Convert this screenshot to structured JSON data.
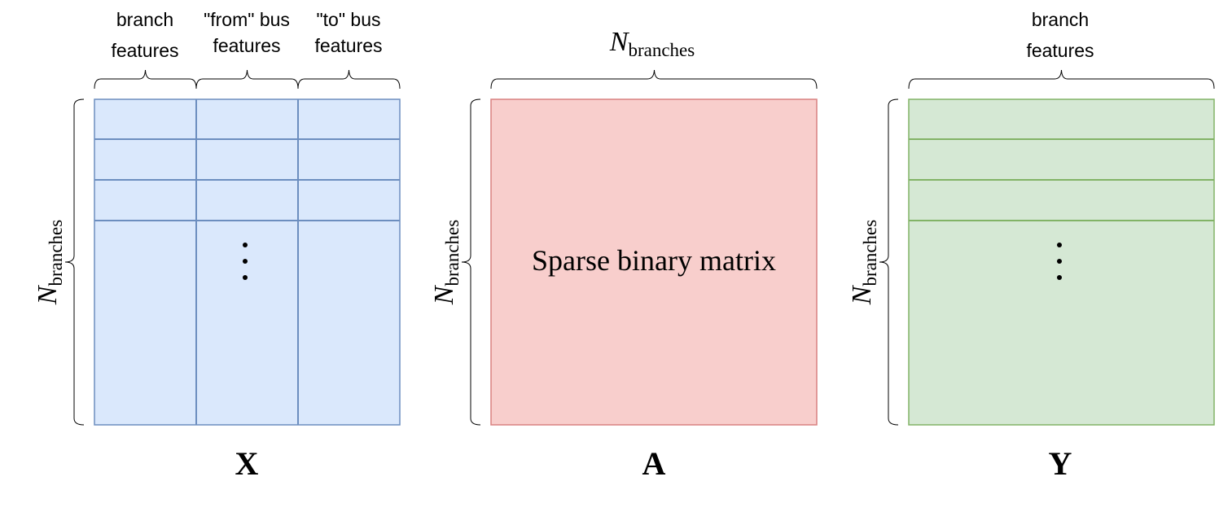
{
  "colors": {
    "x_fill": "#dae8fc",
    "x_stroke": "#6c8ebf",
    "a_fill": "#f8cecc",
    "a_stroke": "#d98080",
    "y_fill": "#d5e8d4",
    "y_stroke": "#82b366"
  },
  "symbols": {
    "n": "N",
    "n_subscript": "branches",
    "ellipsis_dot": "•"
  },
  "matrix_x": {
    "label": "X",
    "col_headers": [
      {
        "line1": "branch",
        "line2": "features"
      },
      {
        "line1": "\"from\" bus",
        "line2": "features"
      },
      {
        "line1": "\"to\" bus",
        "line2": "features"
      }
    ]
  },
  "matrix_a": {
    "label": "A",
    "center_text": "Sparse binary matrix"
  },
  "matrix_y": {
    "label": "Y",
    "col_header": {
      "line1": "branch",
      "line2": "features"
    }
  }
}
